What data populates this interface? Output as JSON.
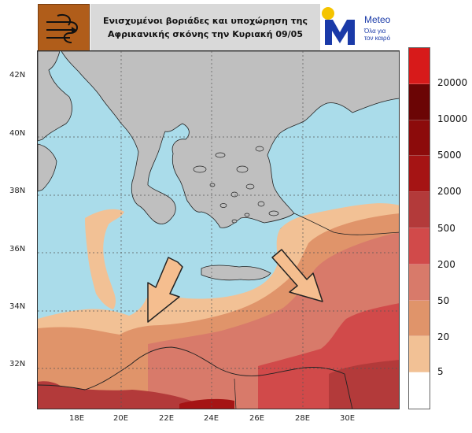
{
  "header": {
    "title_line1": "Ενισχυμένοι βοριάδες και υποχώρηση της",
    "title_line2": "Αφρικανικής σκόνης την Κυριακή 09/05",
    "logo_bg_color": "#b05d1a",
    "logo_icon": "wind-swirl-icon"
  },
  "brand": {
    "name": "Meteo",
    "tagline_line1": "Όλα για",
    "tagline_line2": "τον καιρό",
    "logo_icon": "meteo-m-sun-logo",
    "color": "#1a3aa8"
  },
  "map": {
    "sea_color": "#aadcea",
    "land_color": "#bfbfbf",
    "lat_labels": [
      "42N",
      "40N",
      "38N",
      "36N",
      "34N",
      "32N"
    ],
    "lon_labels": [
      "18E",
      "20E",
      "22E",
      "24E",
      "26E",
      "28E",
      "30E"
    ],
    "arrows": [
      "arrow-southwest-icon",
      "arrow-southeast-icon"
    ]
  },
  "legend": {
    "labels": [
      "20000",
      "10000",
      "5000",
      "2000",
      "500",
      "200",
      "50",
      "20",
      "5"
    ],
    "colors": [
      "#d71a1a",
      "#6b0505",
      "#8c0b0b",
      "#a51414",
      "#b33a3a",
      "#d14a4a",
      "#d87a6a",
      "#e0946a",
      "#f2c195",
      "#ffffff"
    ]
  }
}
